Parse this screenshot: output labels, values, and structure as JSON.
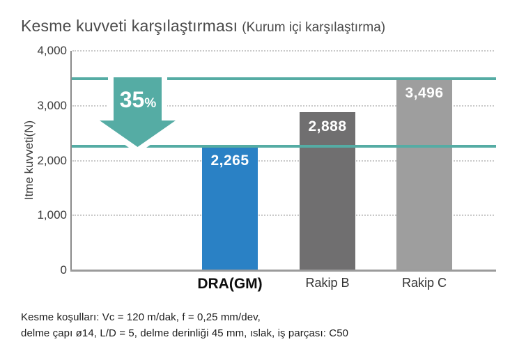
{
  "title": {
    "main": "Kesme kuvveti karşılaştırması",
    "sub": "(Kurum içi karşılaştırma)"
  },
  "chart_data": {
    "type": "bar",
    "title": "Kesme kuvveti karşılaştırması (Kurum içi karşılaştırma)",
    "categories": [
      "DRA(GM)",
      "Rakip B",
      "Rakip C"
    ],
    "values": [
      2265,
      2888,
      3496
    ],
    "value_labels": [
      "2,265",
      "2,888",
      "3,496"
    ],
    "bar_colors": [
      "#2a81c5",
      "#706f70",
      "#9e9e9e"
    ],
    "xlabel": "",
    "ylabel": "Itme kuvveti(N)",
    "ylim": [
      0,
      4000
    ],
    "yticks": [
      "4,000",
      "3,000",
      "2,000",
      "1,000",
      "0"
    ],
    "grid": "dotted horizontal",
    "legend": "none",
    "reference_lines": [
      3496,
      2265
    ],
    "reference_line_color": "#55aca4",
    "annotation": {
      "value": "35",
      "unit": "%",
      "shape": "down-arrow"
    }
  },
  "y_axis": {
    "label": "Itme kuvveti(N)",
    "ticks": [
      "4,000",
      "3,000",
      "2,000",
      "1,000",
      "0"
    ]
  },
  "annotation": {
    "value": "35",
    "unit": "%"
  },
  "colors": {
    "accent_teal": "#55aca4",
    "bar_blue": "#2a81c5",
    "bar_dark_gray": "#706f70",
    "bar_light_gray": "#9e9e9e"
  },
  "footer": {
    "line1": "Kesme koşulları: Vc = 120 m/dak, f = 0,25 mm/dev,",
    "line2": "delme çapı ø14, L/D = 5, delme derinliği 45 mm, ıslak, iş parçası: C50"
  }
}
